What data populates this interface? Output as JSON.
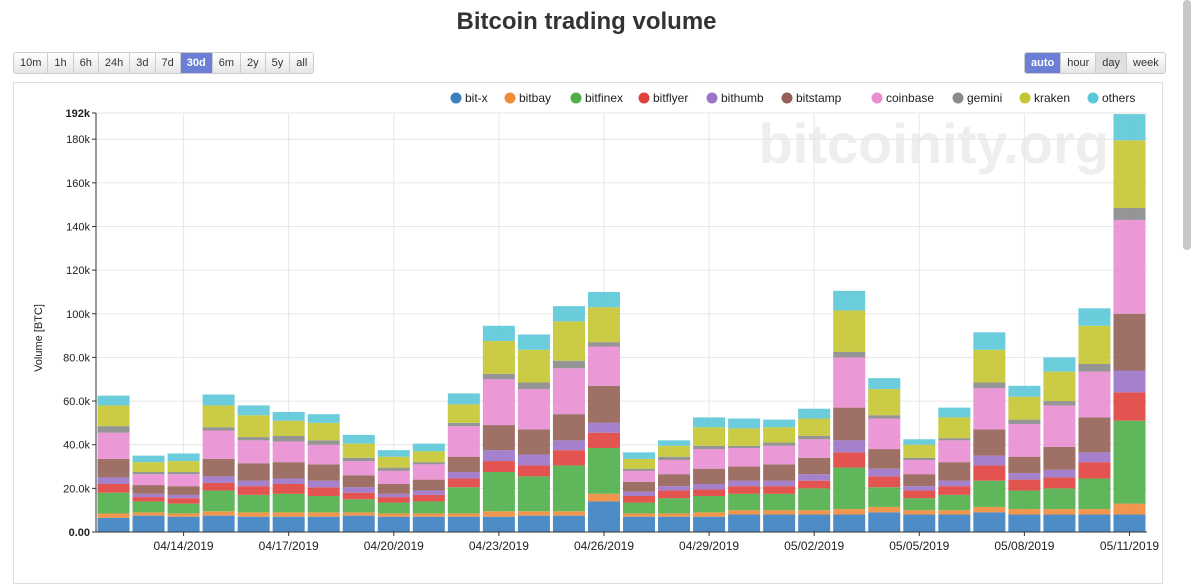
{
  "title": "Bitcoin trading volume",
  "range_buttons": [
    {
      "label": "10m",
      "active": false
    },
    {
      "label": "1h",
      "active": false
    },
    {
      "label": "6h",
      "active": false
    },
    {
      "label": "24h",
      "active": false
    },
    {
      "label": "3d",
      "active": false
    },
    {
      "label": "7d",
      "active": false
    },
    {
      "label": "30d",
      "active": true
    },
    {
      "label": "6m",
      "active": false
    },
    {
      "label": "2y",
      "active": false
    },
    {
      "label": "5y",
      "active": false
    },
    {
      "label": "all",
      "active": false
    }
  ],
  "agg_buttons": [
    {
      "label": "auto",
      "active": true
    },
    {
      "label": "hour",
      "active": false
    },
    {
      "label": "day",
      "active": false
    },
    {
      "label": "week",
      "active": false
    }
  ],
  "watermark": "bitcoinity.org",
  "colors": {
    "bit-x": "#3a7fc1",
    "bitbay": "#f08c3a",
    "bitfinex": "#4fae48",
    "bitflyer": "#e0413e",
    "bithumb": "#9b73c8",
    "bitstamp": "#936155",
    "coinbase": "#e98dd3",
    "gemini": "#8a8a8a",
    "kraken": "#c5c532",
    "others": "#5bc8d8"
  },
  "chart_data": {
    "type": "bar",
    "stacked": true,
    "title": "Bitcoin trading volume",
    "ylabel": "Volume [BTC]",
    "xlabel": "",
    "ylim": [
      0,
      192000
    ],
    "yticks": [
      0,
      20000,
      40000,
      60000,
      80000,
      100000,
      120000,
      140000,
      160000,
      180000,
      192000
    ],
    "ytick_labels": [
      "0.00",
      "20.0k",
      "40.0k",
      "60.0k",
      "80.0k",
      "100k",
      "120k",
      "140k",
      "160k",
      "180k",
      "192k"
    ],
    "xtick_labels": [
      "04/14/2019",
      "04/17/2019",
      "04/20/2019",
      "04/23/2019",
      "04/26/2019",
      "04/29/2019",
      "05/02/2019",
      "05/05/2019",
      "05/08/2019",
      "05/11/2019"
    ],
    "xtick_index": [
      2,
      5,
      8,
      11,
      14,
      17,
      20,
      23,
      26,
      29
    ],
    "categories": [
      "04/12",
      "04/13",
      "04/14",
      "04/15",
      "04/16",
      "04/17",
      "04/18",
      "04/19",
      "04/20",
      "04/21",
      "04/22",
      "04/23",
      "04/24",
      "04/25",
      "04/26",
      "04/27",
      "04/28",
      "04/29",
      "04/30",
      "05/01",
      "05/02",
      "05/03",
      "05/04",
      "05/05",
      "05/06",
      "05/07",
      "05/08",
      "05/09",
      "05/10",
      "05/11"
    ],
    "series": [
      {
        "name": "bit-x",
        "values": [
          6500,
          7500,
          7000,
          7500,
          7000,
          7000,
          7000,
          7500,
          7000,
          7000,
          7000,
          7000,
          7500,
          7500,
          14000,
          7000,
          7000,
          7000,
          8000,
          8000,
          8000,
          8000,
          9000,
          8000,
          8000,
          9000,
          8000,
          8000,
          8000,
          8000
        ]
      },
      {
        "name": "bitbay",
        "values": [
          2000,
          1500,
          1500,
          2000,
          2000,
          2000,
          2000,
          1500,
          1500,
          1500,
          1500,
          2500,
          2000,
          2000,
          3500,
          1500,
          1500,
          2000,
          2000,
          2000,
          2000,
          2500,
          2500,
          2000,
          2000,
          2500,
          2500,
          2500,
          2500,
          5000
        ]
      },
      {
        "name": "bitfinex",
        "values": [
          9500,
          5000,
          4500,
          9500,
          8000,
          8500,
          7500,
          6000,
          5000,
          5500,
          12000,
          18000,
          16000,
          21000,
          21000,
          5000,
          7000,
          7500,
          7500,
          7500,
          10000,
          19000,
          9000,
          5500,
          7000,
          12000,
          8500,
          9500,
          14000,
          38000
        ]
      },
      {
        "name": "bitflyer",
        "values": [
          4000,
          2000,
          2500,
          3500,
          4000,
          4500,
          4000,
          3000,
          2500,
          3000,
          4000,
          5000,
          5000,
          7000,
          7000,
          3000,
          3500,
          3000,
          3500,
          3500,
          3500,
          7000,
          5000,
          3500,
          4000,
          7000,
          5000,
          5000,
          7500,
          13000
        ]
      },
      {
        "name": "bithumb",
        "values": [
          3000,
          1500,
          1500,
          3000,
          2500,
          2500,
          3000,
          2500,
          1500,
          2000,
          3000,
          5000,
          5000,
          4500,
          4500,
          2000,
          2000,
          2500,
          2500,
          2500,
          3000,
          5500,
          3500,
          2000,
          2500,
          4500,
          3000,
          3500,
          4500,
          10000
        ]
      },
      {
        "name": "bitstamp",
        "values": [
          8500,
          4000,
          4000,
          8000,
          8000,
          7500,
          7500,
          5500,
          4500,
          5000,
          7000,
          11500,
          11500,
          12000,
          17000,
          4500,
          5500,
          7000,
          6500,
          7500,
          7500,
          15000,
          9000,
          5500,
          8500,
          12000,
          7500,
          10500,
          16000,
          26000
        ]
      },
      {
        "name": "coinbase",
        "values": [
          12000,
          5000,
          5500,
          13000,
          10500,
          9500,
          9000,
          6500,
          6000,
          7000,
          14000,
          21000,
          18500,
          21000,
          18000,
          5000,
          6500,
          9000,
          8500,
          8500,
          8500,
          23000,
          14000,
          6500,
          10000,
          19000,
          15000,
          19000,
          21000,
          43000
        ]
      },
      {
        "name": "gemini",
        "values": [
          3000,
          1000,
          1000,
          1500,
          1500,
          2500,
          2000,
          1500,
          1500,
          1000,
          1500,
          2500,
          3000,
          3500,
          2000,
          1000,
          1500,
          1500,
          1000,
          1500,
          1500,
          2500,
          1500,
          1000,
          1000,
          2500,
          2000,
          2000,
          3500,
          5500
        ]
      },
      {
        "name": "kraken",
        "values": [
          9500,
          4500,
          5000,
          10000,
          10000,
          7000,
          8000,
          6500,
          5000,
          5000,
          8500,
          15000,
          15000,
          18000,
          16000,
          4500,
          5000,
          8500,
          8000,
          7000,
          8000,
          19000,
          12000,
          6000,
          9500,
          15000,
          10500,
          13500,
          17500,
          31000
        ]
      },
      {
        "name": "others",
        "values": [
          4500,
          3000,
          3500,
          5000,
          4500,
          4000,
          4000,
          4000,
          3000,
          3500,
          5000,
          7000,
          7000,
          7000,
          7000,
          3000,
          2500,
          4500,
          4500,
          3500,
          4500,
          9000,
          5000,
          2500,
          4500,
          8000,
          5000,
          6500,
          8000,
          12000
        ]
      }
    ]
  }
}
